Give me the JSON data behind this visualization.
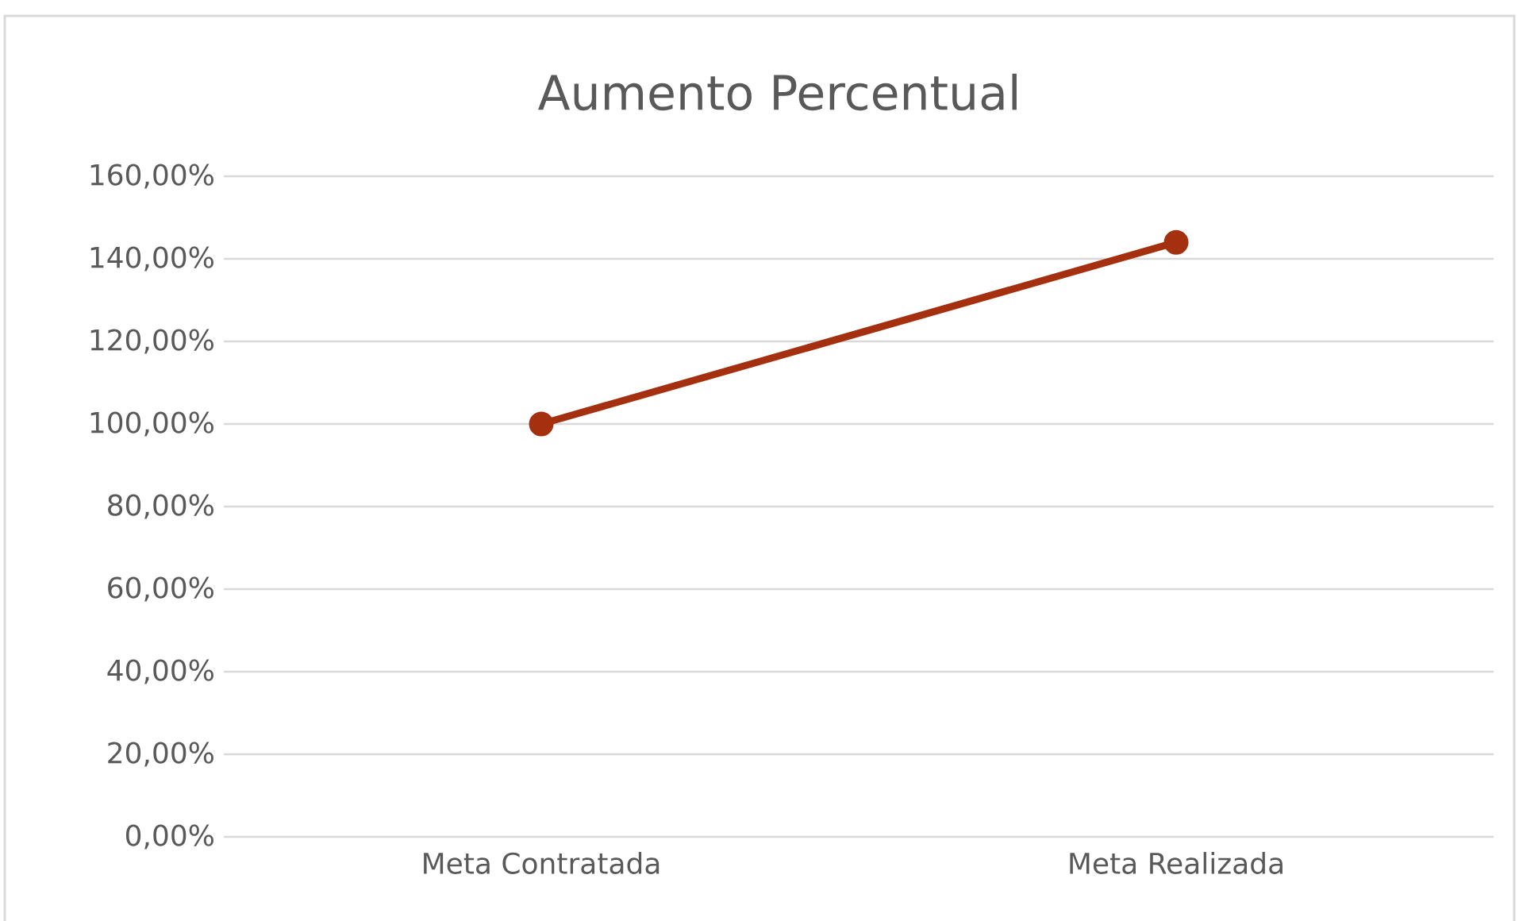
{
  "chart_data": {
    "type": "line",
    "title": "Aumento Percentual",
    "categories": [
      "Meta Contratada",
      "Meta Realizada"
    ],
    "series": [
      {
        "color": "#a5300f",
        "values": [
          100,
          144
        ]
      }
    ],
    "ylim": [
      0,
      160
    ],
    "yticks": [
      {
        "value": 0,
        "label": "0,00%"
      },
      {
        "value": 20,
        "label": "20,00%"
      },
      {
        "value": 40,
        "label": "40,00%"
      },
      {
        "value": 60,
        "label": "60,00%"
      },
      {
        "value": 80,
        "label": "80,00%"
      },
      {
        "value": 100,
        "label": "100,00%"
      },
      {
        "value": 120,
        "label": "120,00%"
      },
      {
        "value": 140,
        "label": "140,00%"
      },
      {
        "value": 160,
        "label": "160,00%"
      }
    ],
    "grid": "y",
    "legend": false,
    "marker": "circle",
    "line_style": "solid"
  }
}
